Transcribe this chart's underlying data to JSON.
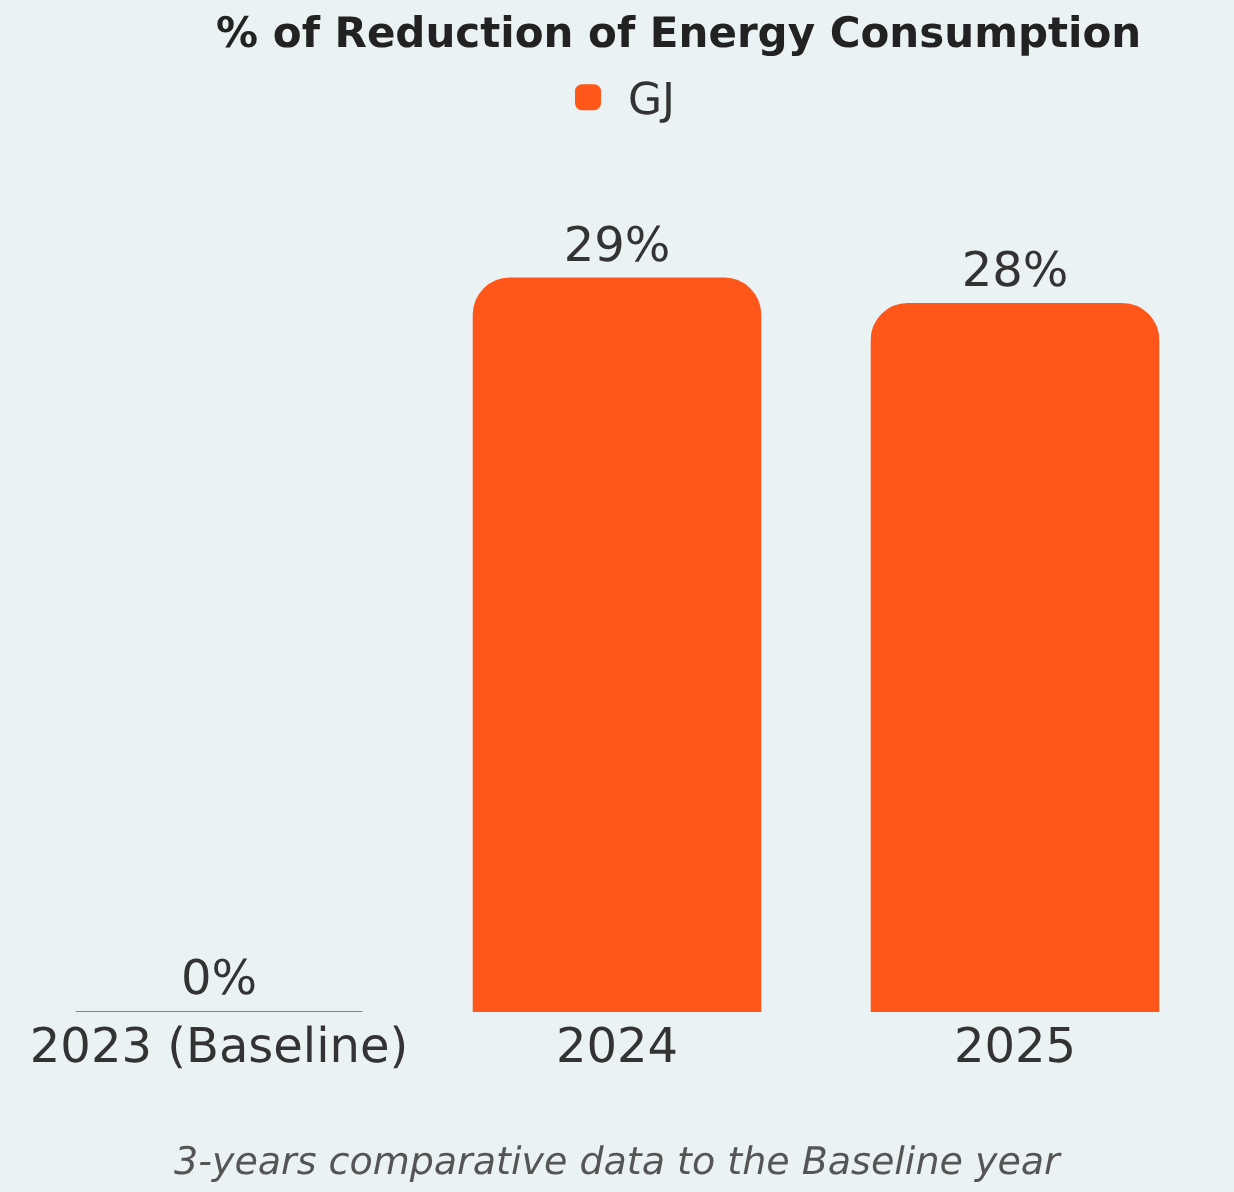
{
  "chart_data": {
    "type": "bar",
    "title": "% of Reduction of Energy Consumption",
    "categories": [
      "2023 (Baseline)",
      "2024",
      "2025"
    ],
    "series": [
      {
        "name": "GJ",
        "color": "#ff5719",
        "values": [
          0,
          29,
          28
        ],
        "value_labels": [
          "0%",
          "29%",
          "28%"
        ]
      }
    ],
    "legend": "top",
    "grid": false,
    "tick_labels": "x",
    "annotations": [
      "3-years comparative data to the Baseline year"
    ]
  }
}
